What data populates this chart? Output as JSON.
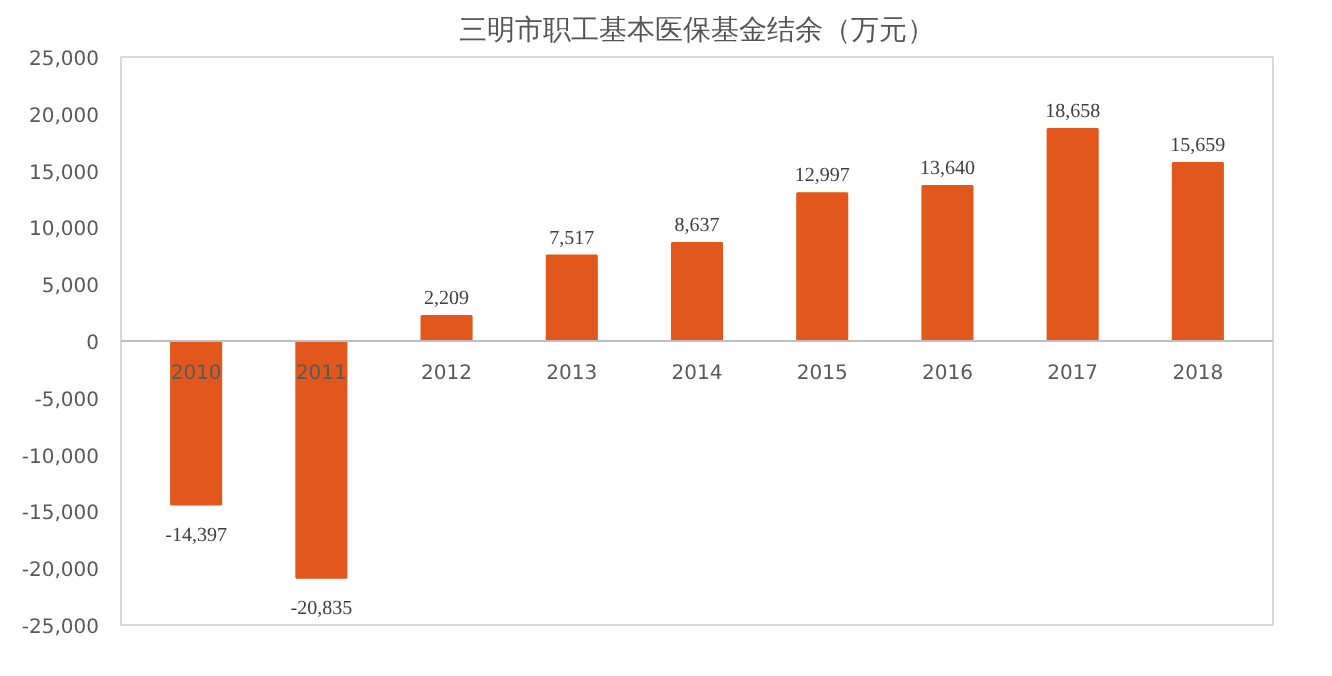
{
  "chart_data": {
    "type": "bar",
    "title": "三明市职工基本医保基金结余（万元）",
    "categories": [
      "2010",
      "2011",
      "2012",
      "2013",
      "2014",
      "2015",
      "2016",
      "2017",
      "2018"
    ],
    "values": [
      -14397,
      -20835,
      2209,
      7517,
      8637,
      12997,
      13640,
      18658,
      15659
    ],
    "value_labels": [
      "-14,397",
      "-20,835",
      "2,209",
      "7,517",
      "8,637",
      "12,997",
      "13,640",
      "18,658",
      "15,659"
    ],
    "color": "#e2581c",
    "ylim": [
      -25000,
      25000
    ],
    "yticks": [
      {
        "value": -25000,
        "label": "-25,000"
      },
      {
        "value": -20000,
        "label": "-20,000"
      },
      {
        "value": -15000,
        "label": "-15,000"
      },
      {
        "value": -10000,
        "label": "-10,000"
      },
      {
        "value": -5000,
        "label": "-5,000"
      },
      {
        "value": 0,
        "label": "0"
      },
      {
        "value": 5000,
        "label": "5,000"
      },
      {
        "value": 10000,
        "label": "10,000"
      },
      {
        "value": 15000,
        "label": "15,000"
      },
      {
        "value": 20000,
        "label": "20,000"
      },
      {
        "value": 25000,
        "label": "25,000"
      }
    ],
    "grid": false
  }
}
